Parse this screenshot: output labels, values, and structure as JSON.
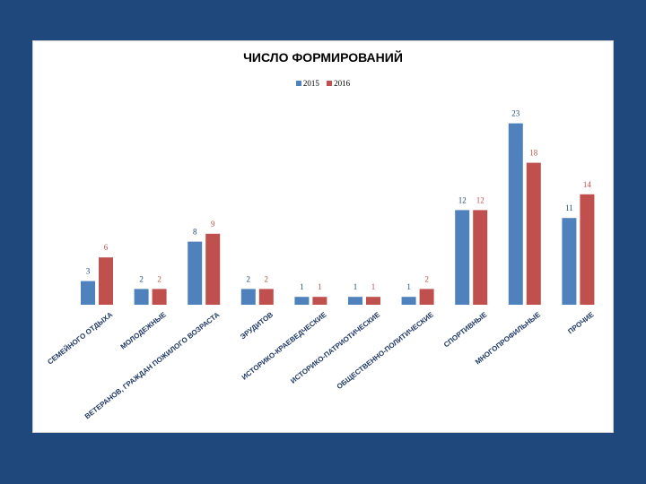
{
  "chart_data": {
    "type": "bar",
    "title": "ЧИСЛО ФОРМИРОВАНИЙ",
    "categories": [
      "СЕМЕЙНОГО ОТДЫХА",
      "МОЛОДЕЖНЫЕ",
      "ВЕТЕРАНОВ, ГРАЖДАН ПОЖИЛОГО ВОЗРАСТА",
      "ЭРУДИТОВ",
      "ИСТОРИКО-КРАЕВЕДЧЕСКИЕ",
      "ИСТОРИКО-ПАТРИОТИЧЕСКИЕ",
      "ОБЩЕСТВЕННО-ПОЛИТИЧЕСКИЕ",
      "СПОРТИВНЫЕ",
      "МНОГОПРОФИЛЬНЫЕ",
      "ПРОЧИЕ"
    ],
    "series": [
      {
        "name": "2015",
        "color": "#4f81bd",
        "values": [
          3,
          2,
          8,
          2,
          1,
          1,
          1,
          12,
          23,
          11
        ]
      },
      {
        "name": "2016",
        "color": "#c0504d",
        "values": [
          6,
          2,
          9,
          2,
          1,
          1,
          2,
          12,
          18,
          14
        ]
      }
    ],
    "ylim": [
      0,
      25
    ],
    "grid": false,
    "legend": "top-center",
    "data_labels": true
  }
}
